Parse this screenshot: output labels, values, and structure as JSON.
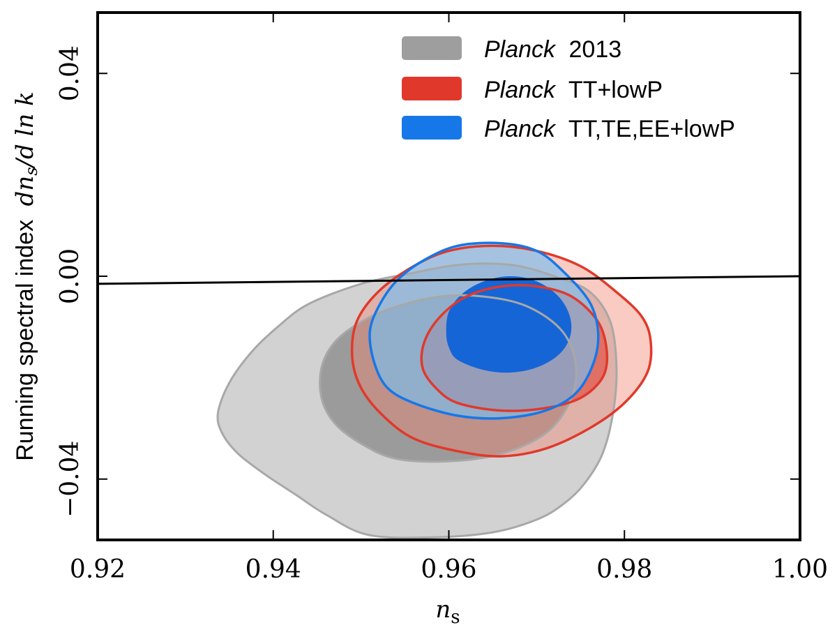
{
  "chart_data": {
    "type": "contour",
    "xlabel_symbol": "n",
    "xlabel_sub": "s",
    "ylabel_text": "Running spectral index",
    "ylabel_math_a": "dn",
    "ylabel_math_sub": "s",
    "ylabel_math_b": "/d ln k",
    "xlim": [
      0.92,
      1.0
    ],
    "ylim": [
      -0.052,
      0.052
    ],
    "xticks": [
      "0.92",
      "0.94",
      "0.96",
      "0.98",
      "1.00"
    ],
    "xtick_values": [
      0.92,
      0.94,
      0.96,
      0.98,
      1.0
    ],
    "yticks": [
      "0.04",
      "0.00",
      "−0.04"
    ],
    "ytick_values": [
      0.04,
      0.0,
      -0.04
    ],
    "reference_line": {
      "x": [
        0.92,
        1.0
      ],
      "y": [
        -0.0015,
        0.0
      ],
      "color": "#000000"
    },
    "legend": [
      {
        "italic": "Planck",
        "rest": "2013",
        "color": "#9e9e9e"
      },
      {
        "italic": "Planck",
        "rest": "TT+lowP",
        "color": "#e0392b"
      },
      {
        "italic": "Planck",
        "rest": "TT,TE,EE+lowP",
        "color": "#1677e8"
      }
    ],
    "series": [
      {
        "name": "Planck 2013",
        "regions": [
          {
            "level": "95%",
            "fill": "#d2d2d2",
            "stroke": "none",
            "points": [
              [
                0.9508,
                -0.051
              ],
              [
                0.958,
                -0.0515
              ],
              [
                0.965,
                -0.0505
              ],
              [
                0.97,
                -0.048
              ],
              [
                0.973,
                -0.045
              ],
              [
                0.9754,
                -0.041
              ],
              [
                0.9775,
                -0.035
              ],
              [
                0.9787,
                -0.027
              ],
              [
                0.9791,
                -0.018
              ],
              [
                0.9784,
                -0.009
              ],
              [
                0.976,
                -0.003
              ],
              [
                0.972,
                0.0
              ],
              [
                0.968,
                0.002
              ],
              [
                0.964,
                0.0025
              ],
              [
                0.96,
                0.002
              ],
              [
                0.9555,
                0.0005
              ],
              [
                0.95,
                -0.0015
              ],
              [
                0.944,
                -0.0055
              ],
              [
                0.9405,
                -0.01
              ],
              [
                0.9375,
                -0.015
              ],
              [
                0.935,
                -0.021
              ],
              [
                0.9337,
                -0.027
              ],
              [
                0.9342,
                -0.031
              ],
              [
                0.936,
                -0.035
              ],
              [
                0.939,
                -0.039
              ],
              [
                0.9425,
                -0.043
              ],
              [
                0.946,
                -0.047
              ]
            ]
          },
          {
            "level": "68%",
            "fill": "#9b9b9b",
            "stroke": "none",
            "points": [
              [
                0.954,
                -0.036
              ],
              [
                0.96,
                -0.0365
              ],
              [
                0.966,
                -0.035
              ],
              [
                0.971,
                -0.031
              ],
              [
                0.9737,
                -0.025
              ],
              [
                0.9745,
                -0.018
              ],
              [
                0.973,
                -0.011
              ],
              [
                0.969,
                -0.006
              ],
              [
                0.964,
                -0.004
              ],
              [
                0.959,
                -0.004
              ],
              [
                0.954,
                -0.006
              ],
              [
                0.95,
                -0.009
              ],
              [
                0.947,
                -0.013
              ],
              [
                0.9455,
                -0.018
              ],
              [
                0.9455,
                -0.024
              ],
              [
                0.947,
                -0.029
              ],
              [
                0.95,
                -0.033
              ]
            ]
          }
        ]
      },
      {
        "name": "Planck TT+lowP",
        "regions": [
          {
            "level": "95%",
            "fill": "rgba(240,130,110,0.42)",
            "stroke": "#e0392b",
            "points": [
              [
                0.956,
                -0.032
              ],
              [
                0.961,
                -0.0345
              ],
              [
                0.966,
                -0.0355
              ],
              [
                0.971,
                -0.034
              ],
              [
                0.976,
                -0.03
              ],
              [
                0.98,
                -0.025
              ],
              [
                0.9826,
                -0.019
              ],
              [
                0.983,
                -0.013
              ],
              [
                0.982,
                -0.008
              ],
              [
                0.979,
                -0.003
              ],
              [
                0.975,
                0.002
              ],
              [
                0.97,
                0.005
              ],
              [
                0.965,
                0.006
              ],
              [
                0.96,
                0.005
              ],
              [
                0.956,
                0.002
              ],
              [
                0.952,
                -0.003
              ],
              [
                0.9495,
                -0.009
              ],
              [
                0.949,
                -0.016
              ],
              [
                0.95,
                -0.022
              ],
              [
                0.9525,
                -0.0275
              ]
            ]
          },
          {
            "level": "68%",
            "fill": "rgba(224,57,43,0.55)",
            "stroke": "#e0392b",
            "points": [
              [
                0.961,
                -0.025
              ],
              [
                0.966,
                -0.0265
              ],
              [
                0.971,
                -0.026
              ],
              [
                0.975,
                -0.024
              ],
              [
                0.9775,
                -0.02
              ],
              [
                0.978,
                -0.015
              ],
              [
                0.977,
                -0.009
              ],
              [
                0.974,
                -0.004
              ],
              [
                0.97,
                -0.002
              ],
              [
                0.966,
                -0.002
              ],
              [
                0.962,
                -0.004
              ],
              [
                0.959,
                -0.008
              ],
              [
                0.9572,
                -0.013
              ],
              [
                0.957,
                -0.018
              ],
              [
                0.9585,
                -0.022
              ]
            ]
          }
        ]
      },
      {
        "name": "Planck TT,TE,EE+lowP",
        "regions": [
          {
            "level": "95%",
            "fill": "rgba(120,190,240,0.65)",
            "stroke": "#1677e8",
            "points": [
              [
                0.956,
                -0.025
              ],
              [
                0.961,
                -0.0275
              ],
              [
                0.966,
                -0.028
              ],
              [
                0.971,
                -0.0265
              ],
              [
                0.9745,
                -0.023
              ],
              [
                0.9765,
                -0.017
              ],
              [
                0.977,
                -0.011
              ],
              [
                0.976,
                -0.005
              ],
              [
                0.973,
                0.001
              ],
              [
                0.97,
                0.005
              ],
              [
                0.966,
                0.0065
              ],
              [
                0.961,
                0.006
              ],
              [
                0.957,
                0.003
              ],
              [
                0.954,
                -0.001
              ],
              [
                0.952,
                -0.006
              ],
              [
                0.951,
                -0.011
              ],
              [
                0.9515,
                -0.017
              ],
              [
                0.953,
                -0.022
              ]
            ]
          },
          {
            "level": "68%",
            "fill": "#1565d6",
            "stroke": "none",
            "points": [
              [
                0.961,
                -0.0165
              ],
              [
                0.964,
                -0.0185
              ],
              [
                0.967,
                -0.019
              ],
              [
                0.97,
                -0.018
              ],
              [
                0.9725,
                -0.0155
              ],
              [
                0.9738,
                -0.012
              ],
              [
                0.9738,
                -0.008
              ],
              [
                0.9725,
                -0.004
              ],
              [
                0.97,
                -0.001
              ],
              [
                0.967,
                0.0
              ],
              [
                0.964,
                -0.001
              ],
              [
                0.9615,
                -0.0035
              ],
              [
                0.96,
                -0.007
              ],
              [
                0.9597,
                -0.011
              ],
              [
                0.96,
                -0.014
              ]
            ]
          }
        ]
      }
    ]
  }
}
